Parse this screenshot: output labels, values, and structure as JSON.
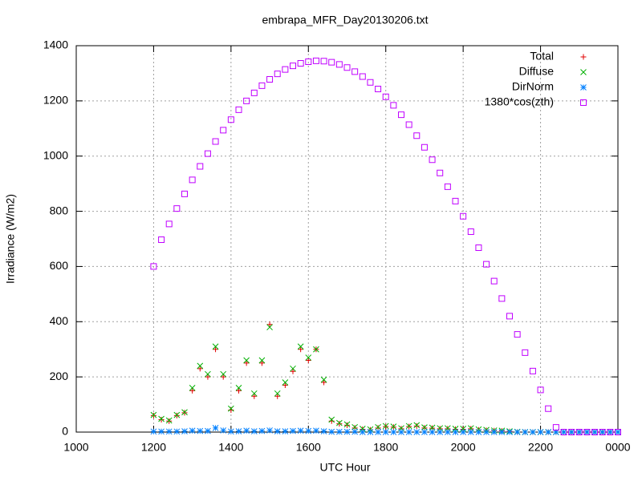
{
  "chart_data": {
    "type": "scatter",
    "title": "embrapa_MFR_Day20130206.txt",
    "x_label": "UTC Hour",
    "y_label": "Irradiance (W/m2)",
    "xlim": [
      1000,
      2400
    ],
    "ylim": [
      0,
      1400
    ],
    "xticks": [
      1000,
      1200,
      1400,
      1600,
      1800,
      2000,
      2200,
      {
        "value": 2400,
        "label": "0000"
      }
    ],
    "yticks": [
      0,
      200,
      400,
      600,
      800,
      1000,
      1200,
      1400
    ],
    "grid": true,
    "legend": "top-right",
    "x": [
      1200,
      1220,
      1240,
      1260,
      1280,
      1300,
      1320,
      1340,
      1360,
      1380,
      1400,
      1420,
      1440,
      1460,
      1480,
      1500,
      1520,
      1540,
      1560,
      1580,
      1600,
      1620,
      1640,
      1660,
      1680,
      1700,
      1720,
      1740,
      1760,
      1780,
      1800,
      1820,
      1840,
      1860,
      1880,
      1900,
      1920,
      1940,
      1960,
      1980,
      2000,
      2020,
      2040,
      2060,
      2080,
      2100,
      2120,
      2140,
      2160,
      2180,
      2200,
      2220,
      2240,
      2260,
      2280,
      2300,
      2320,
      2340,
      2360,
      2380,
      2400
    ],
    "series": [
      {
        "name": "Total",
        "color": "#e00000",
        "marker": "plus",
        "values": [
          60,
          45,
          40,
          60,
          70,
          150,
          230,
          200,
          300,
          200,
          80,
          150,
          250,
          130,
          250,
          390,
          130,
          170,
          220,
          300,
          260,
          300,
          180,
          40,
          30,
          25,
          15,
          10,
          8,
          15,
          20,
          18,
          12,
          20,
          22,
          15,
          14,
          12,
          12,
          10,
          10,
          12,
          8,
          6,
          5,
          4,
          2,
          0,
          0,
          0,
          0,
          0,
          0,
          0,
          0,
          0,
          0,
          0,
          0,
          0,
          0
        ]
      },
      {
        "name": "Diffuse",
        "color": "#00b000",
        "marker": "cross",
        "values": [
          62,
          48,
          42,
          62,
          72,
          160,
          240,
          210,
          310,
          210,
          85,
          160,
          260,
          140,
          260,
          380,
          140,
          180,
          230,
          310,
          270,
          300,
          190,
          45,
          33,
          28,
          18,
          12,
          10,
          18,
          22,
          20,
          14,
          22,
          25,
          17,
          16,
          14,
          14,
          12,
          12,
          14,
          10,
          8,
          6,
          5,
          3,
          1,
          0,
          0,
          0,
          0,
          0,
          0,
          0,
          0,
          0,
          0,
          0,
          0,
          0
        ]
      },
      {
        "name": "DirNorm",
        "color": "#0080ff",
        "marker": "star",
        "values": [
          2,
          2,
          2,
          2,
          3,
          5,
          4,
          4,
          15,
          6,
          2,
          3,
          5,
          3,
          4,
          6,
          3,
          3,
          4,
          5,
          4,
          5,
          3,
          1,
          1,
          1,
          1,
          0,
          0,
          0,
          0,
          0,
          0,
          0,
          0,
          0,
          0,
          0,
          0,
          0,
          0,
          0,
          0,
          0,
          0,
          0,
          0,
          0,
          0,
          0,
          0,
          0,
          0,
          0,
          0,
          0,
          0,
          0,
          0,
          0,
          0
        ]
      },
      {
        "name": "1380*cos(zth)",
        "color": "#c000ff",
        "marker": "square",
        "values": [
          600,
          697,
          754,
          810,
          863,
          914,
          963,
          1009,
          1053,
          1094,
          1132,
          1168,
          1200,
          1229,
          1255,
          1278,
          1298,
          1314,
          1327,
          1336,
          1342,
          1345,
          1344,
          1340,
          1332,
          1321,
          1306,
          1288,
          1267,
          1243,
          1215,
          1184,
          1150,
          1114,
          1074,
          1032,
          987,
          939,
          889,
          837,
          782,
          726,
          668,
          608,
          547,
          484,
          420,
          354,
          288,
          221,
          153,
          85,
          17,
          0,
          0,
          0,
          0,
          0,
          0,
          0,
          0
        ]
      }
    ]
  }
}
